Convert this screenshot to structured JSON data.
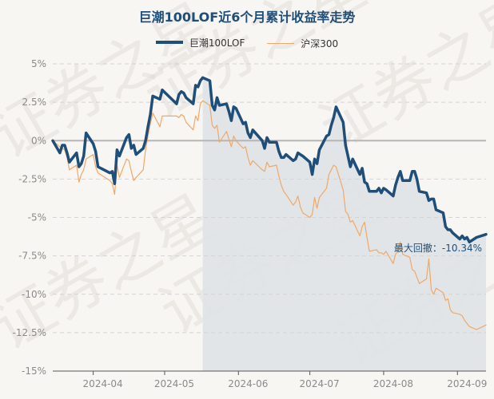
{
  "chart_data": {
    "type": "line",
    "title": "巨潮100LOF近6个月累计收益率走势",
    "xlabel": "",
    "ylabel": "",
    "ylim": [
      -15,
      5
    ],
    "yticks": [
      "5%",
      "2.5%",
      "0%",
      "-2.5%",
      "-5%",
      "-7.5%",
      "-10%",
      "-12.5%",
      "-15%"
    ],
    "xticks": [
      "2024-04",
      "2024-05",
      "2024-06",
      "2024-07",
      "2024-08",
      "2024-09"
    ],
    "grid": true,
    "legend": "top-center",
    "annotation": "最大回撤：-10.34%",
    "drawdown_period": [
      "2024-05-17",
      "2024-09-13"
    ],
    "watermark": "证券之星",
    "series": [
      {
        "name": "巨潮100LOF",
        "color": "#1f4e79",
        "points": [
          [
            "2024-03-15",
            0.0
          ],
          [
            "2024-03-18",
            -0.8
          ],
          [
            "2024-03-19",
            -0.3
          ],
          [
            "2024-03-20",
            -0.3
          ],
          [
            "2024-03-21",
            -0.8
          ],
          [
            "2024-03-22",
            -1.4
          ],
          [
            "2024-03-25",
            -0.8
          ],
          [
            "2024-03-26",
            -1.7
          ],
          [
            "2024-03-27",
            -1.5
          ],
          [
            "2024-03-28",
            -1.0
          ],
          [
            "2024-03-29",
            0.5
          ],
          [
            "2024-04-01",
            -0.2
          ],
          [
            "2024-04-02",
            -0.7
          ],
          [
            "2024-04-03",
            -1.7
          ],
          [
            "2024-04-08",
            -2.1
          ],
          [
            "2024-04-09",
            -2.0
          ],
          [
            "2024-04-10",
            -2.8
          ],
          [
            "2024-04-11",
            -0.6
          ],
          [
            "2024-04-12",
            -1.0
          ],
          [
            "2024-04-15",
            0.2
          ],
          [
            "2024-04-16",
            0.4
          ],
          [
            "2024-04-17",
            -0.5
          ],
          [
            "2024-04-18",
            -0.3
          ],
          [
            "2024-04-19",
            -0.9
          ],
          [
            "2024-04-22",
            -0.5
          ],
          [
            "2024-04-23",
            0.0
          ],
          [
            "2024-04-24",
            0.9
          ],
          [
            "2024-04-25",
            1.7
          ],
          [
            "2024-04-26",
            2.9
          ],
          [
            "2024-04-29",
            2.7
          ],
          [
            "2024-04-30",
            3.3
          ],
          [
            "2024-05-06",
            2.4
          ],
          [
            "2024-05-07",
            3.0
          ],
          [
            "2024-05-08",
            3.2
          ],
          [
            "2024-05-09",
            3.1
          ],
          [
            "2024-05-10",
            2.8
          ],
          [
            "2024-05-13",
            2.4
          ],
          [
            "2024-05-14",
            3.6
          ],
          [
            "2024-05-15",
            3.5
          ],
          [
            "2024-05-16",
            3.9
          ],
          [
            "2024-05-17",
            4.1
          ],
          [
            "2024-05-20",
            3.9
          ],
          [
            "2024-05-21",
            2.3
          ],
          [
            "2024-05-22",
            2.0
          ],
          [
            "2024-05-23",
            2.8
          ],
          [
            "2024-05-24",
            2.3
          ],
          [
            "2024-05-27",
            2.4
          ],
          [
            "2024-05-28",
            1.9
          ],
          [
            "2024-05-29",
            1.3
          ],
          [
            "2024-05-30",
            2.2
          ],
          [
            "2024-05-31",
            2.1
          ],
          [
            "2024-06-03",
            1.1
          ],
          [
            "2024-06-04",
            1.2
          ],
          [
            "2024-06-05",
            0.5
          ],
          [
            "2024-06-06",
            0.2
          ],
          [
            "2024-06-07",
            0.7
          ],
          [
            "2024-06-11",
            0.0
          ],
          [
            "2024-06-12",
            -0.5
          ],
          [
            "2024-06-13",
            0.2
          ],
          [
            "2024-06-14",
            -0.1
          ],
          [
            "2024-06-17",
            -0.1
          ],
          [
            "2024-06-18",
            -0.7
          ],
          [
            "2024-06-19",
            -1.1
          ],
          [
            "2024-06-20",
            -1.1
          ],
          [
            "2024-06-21",
            -0.9
          ],
          [
            "2024-06-24",
            -1.3
          ],
          [
            "2024-06-25",
            -1.2
          ],
          [
            "2024-06-26",
            -0.8
          ],
          [
            "2024-06-27",
            -0.9
          ],
          [
            "2024-06-28",
            -1.0
          ],
          [
            "2024-07-01",
            -1.4
          ],
          [
            "2024-07-02",
            -2.2
          ],
          [
            "2024-07-03",
            -1.2
          ],
          [
            "2024-07-04",
            -1.5
          ],
          [
            "2024-07-05",
            -0.6
          ],
          [
            "2024-07-08",
            0.3
          ],
          [
            "2024-07-09",
            0.4
          ],
          [
            "2024-07-10",
            1.0
          ],
          [
            "2024-07-11",
            1.5
          ],
          [
            "2024-07-12",
            2.2
          ],
          [
            "2024-07-15",
            1.2
          ],
          [
            "2024-07-16",
            -0.3
          ],
          [
            "2024-07-17",
            -1.0
          ],
          [
            "2024-07-18",
            -1.7
          ],
          [
            "2024-07-19",
            -1.2
          ],
          [
            "2024-07-22",
            -2.2
          ],
          [
            "2024-07-23",
            -1.8
          ],
          [
            "2024-07-24",
            -2.7
          ],
          [
            "2024-07-25",
            -2.8
          ],
          [
            "2024-07-26",
            -3.3
          ],
          [
            "2024-07-29",
            -3.3
          ],
          [
            "2024-07-30",
            -3.1
          ],
          [
            "2024-07-31",
            -3.4
          ],
          [
            "2024-08-01",
            -3.1
          ],
          [
            "2024-08-02",
            -3.2
          ],
          [
            "2024-08-05",
            -3.6
          ],
          [
            "2024-08-06",
            -2.9
          ],
          [
            "2024-08-07",
            -2.4
          ],
          [
            "2024-08-08",
            -2.0
          ],
          [
            "2024-08-09",
            -2.6
          ],
          [
            "2024-08-12",
            -2.6
          ],
          [
            "2024-08-13",
            -2.0
          ],
          [
            "2024-08-14",
            -2.0
          ],
          [
            "2024-08-15",
            -2.5
          ],
          [
            "2024-08-16",
            -3.3
          ],
          [
            "2024-08-19",
            -3.4
          ],
          [
            "2024-08-20",
            -3.9
          ],
          [
            "2024-08-21",
            -3.8
          ],
          [
            "2024-08-22",
            -3.8
          ],
          [
            "2024-08-23",
            -4.5
          ],
          [
            "2024-08-26",
            -4.7
          ],
          [
            "2024-08-27",
            -5.6
          ],
          [
            "2024-08-28",
            -5.8
          ],
          [
            "2024-08-29",
            -5.8
          ],
          [
            "2024-08-30",
            -6.0
          ],
          [
            "2024-09-02",
            -6.4
          ],
          [
            "2024-09-03",
            -6.2
          ],
          [
            "2024-09-04",
            -6.4
          ],
          [
            "2024-09-05",
            -6.3
          ],
          [
            "2024-09-06",
            -6.6
          ],
          [
            "2024-09-09",
            -6.3
          ],
          [
            "2024-09-13",
            -6.1
          ]
        ]
      },
      {
        "name": "沪深300",
        "color": "#f0a868",
        "points": [
          [
            "2024-03-15",
            0.0
          ],
          [
            "2024-03-18",
            -0.4
          ],
          [
            "2024-03-19",
            -0.5
          ],
          [
            "2024-03-20",
            -0.6
          ],
          [
            "2024-03-21",
            -1.1
          ],
          [
            "2024-03-22",
            -1.9
          ],
          [
            "2024-03-25",
            -1.6
          ],
          [
            "2024-03-26",
            -2.7
          ],
          [
            "2024-03-27",
            -2.2
          ],
          [
            "2024-03-28",
            -1.9
          ],
          [
            "2024-03-29",
            -1.2
          ],
          [
            "2024-04-01",
            -0.9
          ],
          [
            "2024-04-02",
            -1.7
          ],
          [
            "2024-04-03",
            -2.1
          ],
          [
            "2024-04-08",
            -2.6
          ],
          [
            "2024-04-09",
            -2.8
          ],
          [
            "2024-04-10",
            -3.5
          ],
          [
            "2024-04-11",
            -1.6
          ],
          [
            "2024-04-12",
            -2.4
          ],
          [
            "2024-04-15",
            -1.2
          ],
          [
            "2024-04-16",
            -1.3
          ],
          [
            "2024-04-17",
            -2.0
          ],
          [
            "2024-04-18",
            -2.6
          ],
          [
            "2024-04-19",
            -2.4
          ],
          [
            "2024-04-22",
            -1.9
          ],
          [
            "2024-04-23",
            -0.6
          ],
          [
            "2024-04-24",
            0.3
          ],
          [
            "2024-04-25",
            1.1
          ],
          [
            "2024-04-26",
            1.8
          ],
          [
            "2024-04-29",
            0.9
          ],
          [
            "2024-04-30",
            1.6
          ],
          [
            "2024-05-06",
            1.6
          ],
          [
            "2024-05-07",
            1.5
          ],
          [
            "2024-05-08",
            1.7
          ],
          [
            "2024-05-09",
            1.6
          ],
          [
            "2024-05-10",
            1.2
          ],
          [
            "2024-05-13",
            0.7
          ],
          [
            "2024-05-14",
            1.6
          ],
          [
            "2024-05-15",
            1.3
          ],
          [
            "2024-05-16",
            2.4
          ],
          [
            "2024-05-17",
            2.6
          ],
          [
            "2024-05-20",
            2.3
          ],
          [
            "2024-05-21",
            1.0
          ],
          [
            "2024-05-22",
            0.8
          ],
          [
            "2024-05-23",
            1.0
          ],
          [
            "2024-05-24",
            -0.1
          ],
          [
            "2024-05-27",
            0.6
          ],
          [
            "2024-05-28",
            0.1
          ],
          [
            "2024-05-29",
            -0.4
          ],
          [
            "2024-05-30",
            0.3
          ],
          [
            "2024-05-31",
            0.0
          ],
          [
            "2024-06-03",
            -0.5
          ],
          [
            "2024-06-04",
            -0.4
          ],
          [
            "2024-06-05",
            -1.1
          ],
          [
            "2024-06-06",
            -1.6
          ],
          [
            "2024-06-07",
            -1.3
          ],
          [
            "2024-06-11",
            -1.9
          ],
          [
            "2024-06-12",
            -2.0
          ],
          [
            "2024-06-13",
            -1.4
          ],
          [
            "2024-06-14",
            -1.7
          ],
          [
            "2024-06-17",
            -1.6
          ],
          [
            "2024-06-18",
            -2.3
          ],
          [
            "2024-06-19",
            -2.9
          ],
          [
            "2024-06-20",
            -3.3
          ],
          [
            "2024-06-21",
            -3.5
          ],
          [
            "2024-06-24",
            -4.2
          ],
          [
            "2024-06-25",
            -4.0
          ],
          [
            "2024-06-26",
            -3.6
          ],
          [
            "2024-06-27",
            -4.3
          ],
          [
            "2024-06-28",
            -4.7
          ],
          [
            "2024-07-01",
            -5.0
          ],
          [
            "2024-07-02",
            -4.8
          ],
          [
            "2024-07-03",
            -3.7
          ],
          [
            "2024-07-04",
            -4.4
          ],
          [
            "2024-07-05",
            -3.7
          ],
          [
            "2024-07-08",
            -3.1
          ],
          [
            "2024-07-09",
            -2.2
          ],
          [
            "2024-07-10",
            -1.9
          ],
          [
            "2024-07-11",
            -1.6
          ],
          [
            "2024-07-12",
            -1.7
          ],
          [
            "2024-07-15",
            -3.2
          ],
          [
            "2024-07-16",
            -4.6
          ],
          [
            "2024-07-17",
            -4.8
          ],
          [
            "2024-07-18",
            -5.3
          ],
          [
            "2024-07-19",
            -5.2
          ],
          [
            "2024-07-22",
            -6.2
          ],
          [
            "2024-07-23",
            -5.6
          ],
          [
            "2024-07-24",
            -5.3
          ],
          [
            "2024-07-25",
            -6.3
          ],
          [
            "2024-07-26",
            -7.2
          ],
          [
            "2024-07-29",
            -7.1
          ],
          [
            "2024-07-30",
            -7.3
          ],
          [
            "2024-07-31",
            -7.3
          ],
          [
            "2024-08-01",
            -7.4
          ],
          [
            "2024-08-02",
            -7.2
          ],
          [
            "2024-08-05",
            -8.0
          ],
          [
            "2024-08-06",
            -7.4
          ],
          [
            "2024-08-07",
            -7.2
          ],
          [
            "2024-08-08",
            -6.6
          ],
          [
            "2024-08-09",
            -7.4
          ],
          [
            "2024-08-12",
            -7.6
          ],
          [
            "2024-08-13",
            -8.4
          ],
          [
            "2024-08-14",
            -8.5
          ],
          [
            "2024-08-15",
            -8.9
          ],
          [
            "2024-08-16",
            -9.3
          ],
          [
            "2024-08-19",
            -9.0
          ],
          [
            "2024-08-20",
            -7.7
          ],
          [
            "2024-08-21",
            -9.7
          ],
          [
            "2024-08-22",
            -10.0
          ],
          [
            "2024-08-23",
            -9.6
          ],
          [
            "2024-08-26",
            -9.9
          ],
          [
            "2024-08-27",
            -10.4
          ],
          [
            "2024-08-28",
            -10.3
          ],
          [
            "2024-08-29",
            -11.0
          ],
          [
            "2024-08-30",
            -11.2
          ],
          [
            "2024-09-02",
            -11.3
          ],
          [
            "2024-09-03",
            -11.4
          ],
          [
            "2024-09-04",
            -11.7
          ],
          [
            "2024-09-05",
            -11.9
          ],
          [
            "2024-09-06",
            -12.1
          ],
          [
            "2024-09-09",
            -12.3
          ],
          [
            "2024-09-13",
            -12.0
          ]
        ]
      }
    ]
  }
}
